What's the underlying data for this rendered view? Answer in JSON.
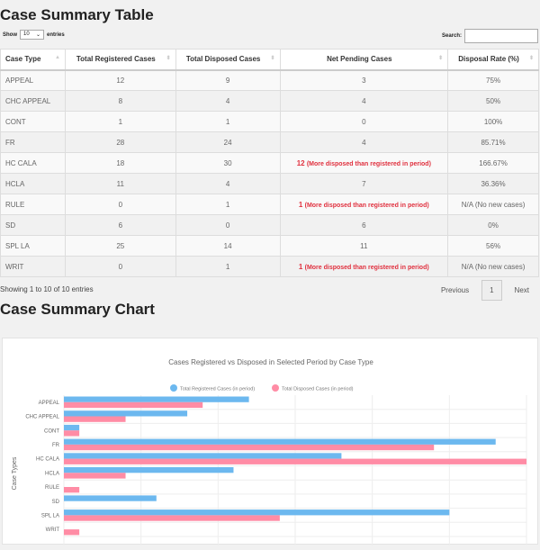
{
  "table_title": "Case Summary Table",
  "chart_section_title": "Case Summary Chart",
  "controls": {
    "show": "Show",
    "entries_value": "10",
    "entries": "entries",
    "search": "Search:"
  },
  "columns": [
    "Case Type",
    "Total Registered Cases",
    "Total Disposed Cases",
    "Net Pending Cases",
    "Disposal Rate (%)"
  ],
  "rows": [
    {
      "type": "APPEAL",
      "reg": "12",
      "disp": "9",
      "pending": "3",
      "note": "",
      "rate": "75%"
    },
    {
      "type": "CHC APPEAL",
      "reg": "8",
      "disp": "4",
      "pending": "4",
      "note": "",
      "rate": "50%"
    },
    {
      "type": "CONT",
      "reg": "1",
      "disp": "1",
      "pending": "0",
      "note": "",
      "rate": "100%"
    },
    {
      "type": "FR",
      "reg": "28",
      "disp": "24",
      "pending": "4",
      "note": "",
      "rate": "85.71%"
    },
    {
      "type": "HC CALA",
      "reg": "18",
      "disp": "30",
      "pending": "12",
      "note": "(More disposed than registered in period)",
      "rate": "166.67%"
    },
    {
      "type": "HCLA",
      "reg": "11",
      "disp": "4",
      "pending": "7",
      "note": "",
      "rate": "36.36%"
    },
    {
      "type": "RULE",
      "reg": "0",
      "disp": "1",
      "pending": "1",
      "note": "(More disposed than registered in period)",
      "rate": "N/A (No new cases)"
    },
    {
      "type": "SD",
      "reg": "6",
      "disp": "0",
      "pending": "6",
      "note": "",
      "rate": "0%"
    },
    {
      "type": "SPL LA",
      "reg": "25",
      "disp": "14",
      "pending": "11",
      "note": "",
      "rate": "56%"
    },
    {
      "type": "WRIT",
      "reg": "0",
      "disp": "1",
      "pending": "1",
      "note": "(More disposed than registered in period)",
      "rate": "N/A (No new cases)"
    }
  ],
  "info": "Showing 1 to 10 of 10 entries",
  "pager": {
    "prev": "Previous",
    "page": "1",
    "next": "Next"
  },
  "chart_data": {
    "type": "bar",
    "orientation": "horizontal",
    "title": "Cases Registered vs Disposed in Selected Period by Case Type",
    "ylabel": "Case Types",
    "categories": [
      "APPEAL",
      "CHC APPEAL",
      "CONT",
      "FR",
      "HC CALA",
      "HCLA",
      "RULE",
      "SD",
      "SPL LA",
      "WRIT"
    ],
    "series": [
      {
        "name": "Total Registered Cases (in period)",
        "color": "#6cb8ef",
        "values": [
          12,
          8,
          1,
          28,
          18,
          11,
          0,
          6,
          25,
          0
        ]
      },
      {
        "name": "Total Disposed Cases (in period)",
        "color": "#ff8ca5",
        "values": [
          9,
          4,
          1,
          24,
          30,
          4,
          1,
          0,
          14,
          1
        ]
      }
    ],
    "xlim": [
      0,
      30
    ],
    "grid": true,
    "legend": "top"
  }
}
